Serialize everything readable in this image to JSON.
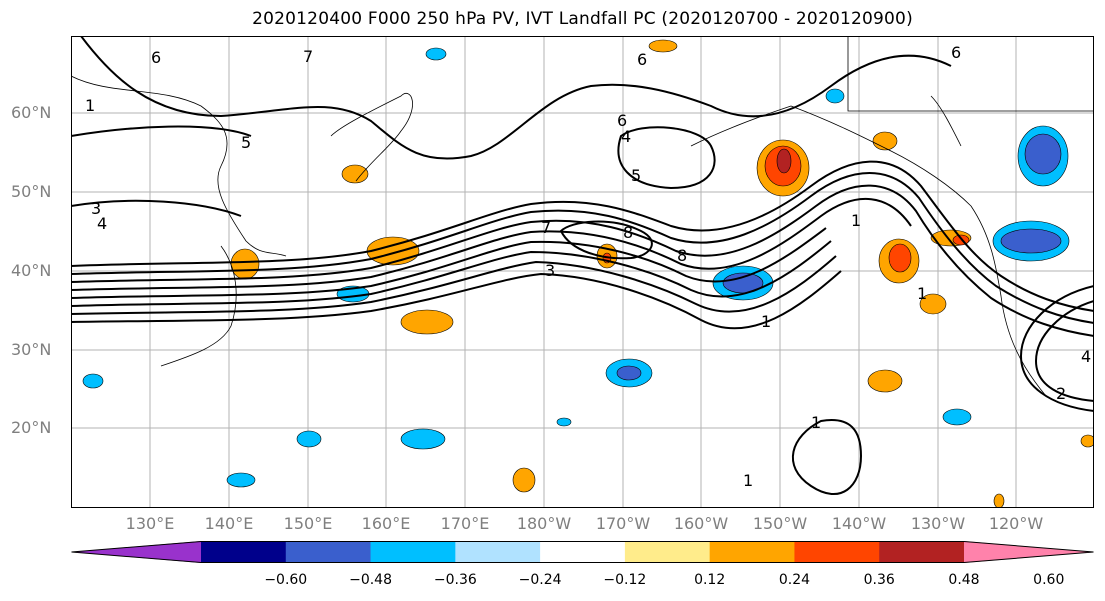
{
  "title": "2020120400 F000 250 hPa PV, IVT Landfall PC (2020120700 - 2020120900)",
  "lat_labels": [
    "60°N",
    "50°N",
    "40°N",
    "30°N",
    "20°N"
  ],
  "lon_labels": [
    "130°E",
    "140°E",
    "150°E",
    "160°E",
    "170°E",
    "180°W",
    "170°W",
    "160°W",
    "150°W",
    "140°W",
    "130°W",
    "120°W"
  ],
  "colorbar": {
    "ticks": [
      "−0.60",
      "−0.48",
      "−0.36",
      "−0.24",
      "−0.12",
      "0.12",
      "0.24",
      "0.36",
      "0.48",
      "0.60"
    ],
    "colors": [
      "#9932cc",
      "#00008b",
      "#3a5fcd",
      "#00bfff",
      "#b0e2ff",
      "#ffffff",
      "#ffec8b",
      "#ffa500",
      "#ff4500",
      "#b22222",
      "#ff82ab"
    ],
    "range": [
      -0.72,
      0.72
    ]
  },
  "contour_labels": [
    "6",
    "1",
    "7",
    "5",
    "3",
    "4",
    "6",
    "4",
    "5",
    "7",
    "8",
    "3",
    "6",
    "8",
    "1",
    "1",
    "1",
    "1",
    "6",
    "4",
    "2",
    "1"
  ]
}
